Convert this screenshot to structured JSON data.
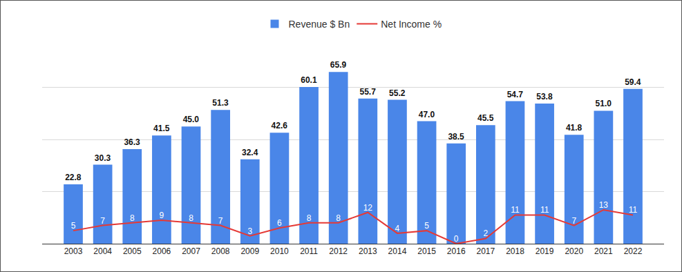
{
  "chart_data": {
    "type": "bar",
    "categories": [
      "2003",
      "2004",
      "2005",
      "2006",
      "2007",
      "2008",
      "2009",
      "2010",
      "2011",
      "2012",
      "2013",
      "2014",
      "2015",
      "2016",
      "2017",
      "2018",
      "2019",
      "2020",
      "2021",
      "2022"
    ],
    "series": [
      {
        "name": "Revenue $ Bn",
        "type": "bar",
        "color": "#4a86e8",
        "values": [
          22.8,
          30.3,
          36.3,
          41.5,
          45.0,
          51.3,
          32.4,
          42.6,
          60.1,
          65.9,
          55.7,
          55.2,
          47.0,
          38.5,
          45.5,
          54.7,
          53.8,
          41.8,
          51.0,
          59.4
        ],
        "value_labels": [
          "22.8",
          "30.3",
          "36.3",
          "41.5",
          "45.0",
          "51.3",
          "32.4",
          "42.6",
          "60.1",
          "65.9",
          "55.7",
          "55.2",
          "47.0",
          "38.5",
          "45.5",
          "54.7",
          "53.8",
          "41.8",
          "51.0",
          "59.4"
        ]
      },
      {
        "name": "Net Income %",
        "type": "line",
        "color": "#e53935",
        "values": [
          5,
          7,
          8,
          9,
          8,
          7,
          3,
          6,
          8,
          8,
          12,
          4,
          5,
          0,
          2,
          11,
          11,
          7,
          13,
          11
        ]
      }
    ],
    "ylim": [
      0,
      80
    ],
    "yticks": [
      0,
      20,
      40,
      60,
      80
    ],
    "grid": true,
    "legend": "top",
    "data_labels": true,
    "tick_labels": "x"
  }
}
